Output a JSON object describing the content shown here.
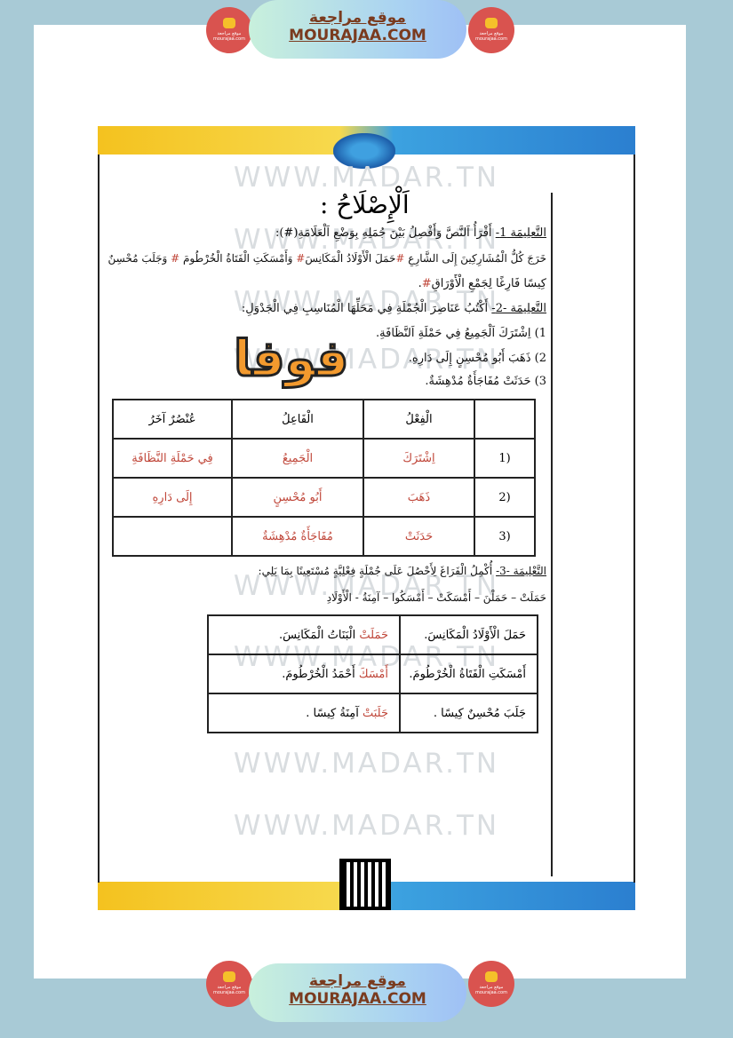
{
  "site_banner": {
    "arabic": "موقع مراجعة",
    "latin": "MOURAJAA.COM",
    "badge_text": "موقع مراجعة mourajaa.com"
  },
  "watermark": "WWW.MADAR.TN",
  "logo_text": "فوفا",
  "title": "اَلْإِصْلَاحُ :",
  "instruction1": {
    "label": "التَّعلِيمَة 1-",
    "text": "أَقْرَأُ اَلنَّصَّ وَأَفْصِلُ بَيْنَ جُمَلِهِ بِوَضْعِ اَلْعَلَامَةِ(#):",
    "line1_a": "خَرَجَ كُلُّ الْمُشَارِكِينَ إِلَى الشَّارِعِ ",
    "mark1": "#",
    "line1_b": "حَمَلَ الْأَوْلَادُ الْمَكَانِسَ",
    "mark2": "#",
    "line1_c": " وَأَمْسَكَتِ الْفَتَاةُ الْخُرْطُومَ ",
    "mark3": "#",
    "line1_d": " وَجَلَبَ مُحْسِنٌ",
    "line2": "كِيسًا فَارِغًا لِجَمْعِ الْأَوْرَاقِ",
    "mark4": "#"
  },
  "instruction2": {
    "label": "التَّعلِيمَة -2-",
    "text": "أَكْتُبُ عَنَاصِرَ الْجُمْلَةِ فِي مَحَلِّهَا الْمُنَاسِبِ فِي الْجَدْوَلِ:",
    "sentences": [
      "1) اِشْتَرَكَ اَلْجَمِيعُ فِي حَمْلَةِ اَلنَّظَافَةِ.",
      "2) ذَهَبَ أَبُو مُحْسِنٍ إِلَى دَارِهِ.",
      "3) حَدَثَتْ مُفَاجَأَةٌ مُدْهِشَةٌ."
    ],
    "table": {
      "headers": [
        "",
        "الْفِعْلُ",
        "الْفَاعِلُ",
        "عُنْصُرٌ آخَرُ"
      ],
      "rows": [
        [
          "(1",
          "اِشْتَرَكَ",
          "الْجَمِيعُ",
          "فِي حَمْلَةِ النَّظَافَةِ"
        ],
        [
          "(2",
          "ذَهَبَ",
          "أَبُو مُحْسِنٍ",
          "إِلَى دَارِهِ"
        ],
        [
          "(3",
          "حَدَثَتْ",
          "مُفَاجَأَةٌ مُدْهِشَةٌ",
          ""
        ]
      ]
    }
  },
  "instruction3": {
    "label": "التَّعْلِيمَة -3-",
    "text": "أُكْمِلُ الْفَرَاغَ لِأَحْصُلَ عَلَى جُمْلَةٍ فِعْلِيَّةٍ مُسْتَعِينًا بِمَا يَلِي:",
    "word_bank": "حَمَلَتْ – حَمَلْنَ – أَمْسَكَتْ – أَمْسَكُوا – آمِنَةُ - الْأَوْلَادِ",
    "rows": [
      {
        "given": "حَمَلَ الْأَوْلَادُ الْمَكَانِسَ.",
        "answer_verb": "حَمَلَتْ",
        "answer_rest": " الْبَنَاتُ الْمَكَانِسَ."
      },
      {
        "given": "أَمْسَكَتِ الْفَتَاةُ الْخُرْطُومَ.",
        "answer_verb": "أَمْسَكَ",
        "answer_rest": " أَحْمَدُ الْخُرْطُومَ."
      },
      {
        "given": "جَلَبَ مُحْسِنٌ كِيسًا .",
        "answer_verb": "جَلَبَتْ",
        "answer_rest": " آمِنَةُ كِيسًا ."
      }
    ]
  },
  "colors": {
    "answer": "#c0473a",
    "background": "#a8cad6",
    "banner_text": "#7a3b1f"
  }
}
